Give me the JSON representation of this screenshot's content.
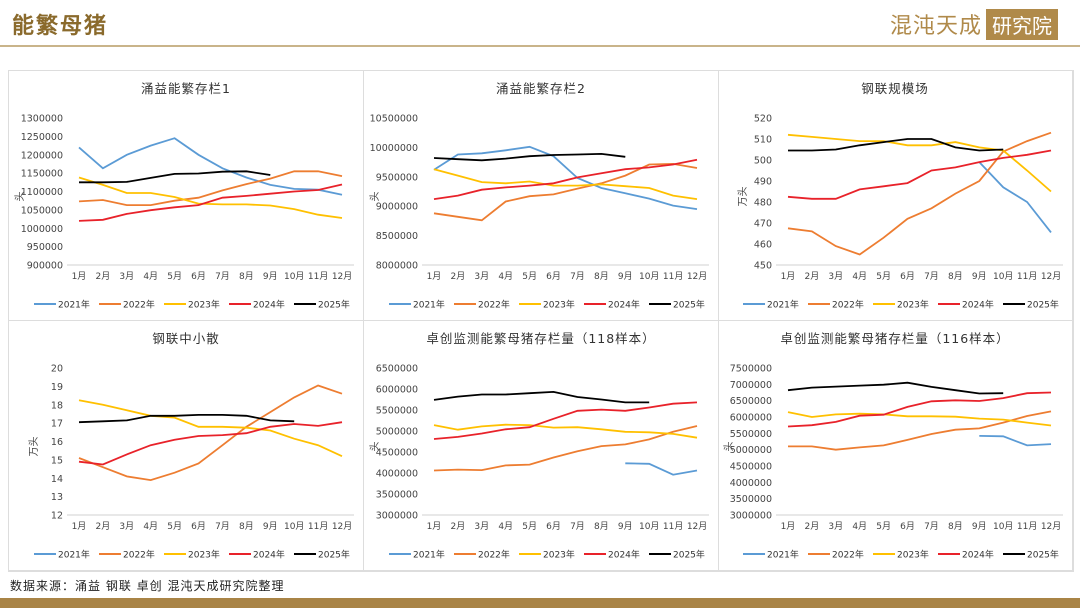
{
  "header": {
    "title": "能繁母猪",
    "logo_text": "混沌天成",
    "logo_badge": "研究院"
  },
  "footer": {
    "source": "数据来源：涌益 钢联 卓创 混沌天成研究院整理"
  },
  "colors": {
    "2021年": "#5b9bd5",
    "2022年": "#ed7d31",
    "2023年": "#ffc000",
    "2024年": "#e8222a",
    "2025年": "#000000"
  },
  "chart_data": [
    {
      "type": "line",
      "title": "涌益能繁存栏1",
      "ylabel": "头",
      "xlabel": "",
      "categories": [
        "1月",
        "2月",
        "3月",
        "4月",
        "5月",
        "6月",
        "7月",
        "8月",
        "9月",
        "10月",
        "11月",
        "12月"
      ],
      "ylim": [
        900000,
        1300000
      ],
      "ystep": 50000,
      "legend": "bottom",
      "series": [
        {
          "name": "2021年",
          "values": [
            1220000,
            1163000,
            1200000,
            1225000,
            1245000,
            1200000,
            1163000,
            1138000,
            1118000,
            1107000,
            1105000,
            1091000
          ]
        },
        {
          "name": "2022年",
          "values": [
            1073000,
            1077000,
            1063000,
            1063000,
            1075000,
            1083000,
            1103000,
            1120000,
            1135000,
            1155000,
            1155000,
            1142000
          ]
        },
        {
          "name": "2023年",
          "values": [
            1138000,
            1118000,
            1096000,
            1096000,
            1085000,
            1067000,
            1065000,
            1065000,
            1062000,
            1052000,
            1037000,
            1028000
          ]
        },
        {
          "name": "2024年",
          "values": [
            1020000,
            1023000,
            1039000,
            1049000,
            1057000,
            1063000,
            1083000,
            1088000,
            1094000,
            1100000,
            1104000,
            1119000
          ]
        },
        {
          "name": "2025年",
          "values": [
            1125000,
            1125000,
            1126000,
            1137000,
            1148000,
            1149000,
            1154000,
            1155000,
            1145000,
            null,
            null,
            null
          ]
        }
      ]
    },
    {
      "type": "line",
      "title": "涌益能繁存栏2",
      "ylabel": "头",
      "xlabel": "",
      "categories": [
        "1月",
        "2月",
        "3月",
        "4月",
        "5月",
        "6月",
        "7月",
        "8月",
        "9月",
        "10月",
        "11月",
        "12月"
      ],
      "ylim": [
        8000000,
        10500000
      ],
      "ystep": 500000,
      "legend": "bottom",
      "series": [
        {
          "name": "2021年",
          "values": [
            9620000,
            9880000,
            9900000,
            9950000,
            10010000,
            9850000,
            9480000,
            9310000,
            9220000,
            9130000,
            9010000,
            8950000
          ]
        },
        {
          "name": "2022年",
          "values": [
            8880000,
            8820000,
            8760000,
            9080000,
            9170000,
            9200000,
            9300000,
            9390000,
            9520000,
            9710000,
            9720000,
            9650000
          ]
        },
        {
          "name": "2023年",
          "values": [
            9630000,
            9520000,
            9410000,
            9390000,
            9420000,
            9350000,
            9350000,
            9370000,
            9340000,
            9310000,
            9180000,
            9120000
          ]
        },
        {
          "name": "2024年",
          "values": [
            9120000,
            9180000,
            9280000,
            9320000,
            9350000,
            9390000,
            9490000,
            9560000,
            9630000,
            9660000,
            9710000,
            9790000
          ]
        },
        {
          "name": "2025年",
          "values": [
            9820000,
            9800000,
            9780000,
            9810000,
            9850000,
            9870000,
            9880000,
            9890000,
            9840000,
            null,
            null,
            null
          ]
        }
      ]
    },
    {
      "type": "line",
      "title": "钢联规模场",
      "ylabel": "万头",
      "xlabel": "",
      "categories": [
        "1月",
        "2月",
        "3月",
        "4月",
        "5月",
        "6月",
        "7月",
        "8月",
        "9月",
        "10月",
        "11月",
        "12月"
      ],
      "ylim": [
        450,
        520
      ],
      "ystep": 10,
      "legend": "bottom",
      "series": [
        {
          "name": "2021年",
          "values": [
            null,
            null,
            null,
            null,
            null,
            null,
            null,
            null,
            499,
            487,
            480,
            465.5
          ]
        },
        {
          "name": "2022年",
          "values": [
            467.5,
            466,
            459,
            455,
            463,
            472,
            477,
            484,
            490,
            504,
            509,
            513
          ]
        },
        {
          "name": "2023年",
          "values": [
            512,
            511,
            510,
            509,
            509,
            507,
            507,
            508.5,
            506,
            504.5,
            495,
            485
          ]
        },
        {
          "name": "2024年",
          "values": [
            482.5,
            481.5,
            481.5,
            486,
            487.5,
            489,
            495,
            496.5,
            499,
            501,
            502.5,
            504.5
          ]
        },
        {
          "name": "2025年",
          "values": [
            504.5,
            504.5,
            505,
            507,
            508.5,
            510,
            510,
            506,
            504.5,
            505,
            null,
            null
          ]
        }
      ]
    },
    {
      "type": "line",
      "title": "钢联中小散",
      "ylabel": "万头",
      "xlabel": "",
      "categories": [
        "1月",
        "2月",
        "3月",
        "4月",
        "5月",
        "6月",
        "7月",
        "8月",
        "9月",
        "10月",
        "11月",
        "12月"
      ],
      "ylim": [
        12,
        20
      ],
      "ystep": 1,
      "legend": "bottom",
      "series": [
        {
          "name": "2021年",
          "values": [
            null,
            null,
            null,
            null,
            null,
            null,
            null,
            null,
            null,
            null,
            null,
            null
          ]
        },
        {
          "name": "2022年",
          "values": [
            15.1,
            14.6,
            14.1,
            13.9,
            14.3,
            14.8,
            15.8,
            16.8,
            17.6,
            18.4,
            19.05,
            18.6
          ]
        },
        {
          "name": "2023年",
          "values": [
            18.25,
            18.0,
            17.7,
            17.4,
            17.3,
            16.8,
            16.8,
            16.75,
            16.6,
            16.15,
            15.8,
            15.2
          ]
        },
        {
          "name": "2024年",
          "values": [
            14.9,
            14.75,
            15.3,
            15.8,
            16.1,
            16.3,
            16.35,
            16.45,
            16.8,
            16.95,
            16.85,
            17.05
          ]
        },
        {
          "name": "2025年",
          "values": [
            17.05,
            17.1,
            17.15,
            17.4,
            17.4,
            17.45,
            17.45,
            17.4,
            17.15,
            17.1,
            null,
            null
          ]
        }
      ]
    },
    {
      "type": "line",
      "title": "卓创监测能繁母猪存栏量（118样本）",
      "ylabel": "头",
      "xlabel": "",
      "categories": [
        "1月",
        "2月",
        "3月",
        "4月",
        "5月",
        "6月",
        "7月",
        "8月",
        "9月",
        "10月",
        "11月",
        "12月"
      ],
      "ylim": [
        3000000,
        6500000
      ],
      "ystep": 500000,
      "legend": "bottom",
      "series": [
        {
          "name": "2021年",
          "values": [
            null,
            null,
            null,
            null,
            null,
            null,
            null,
            null,
            4230000,
            4220000,
            3960000,
            4060000
          ]
        },
        {
          "name": "2022年",
          "values": [
            4060000,
            4080000,
            4070000,
            4180000,
            4200000,
            4370000,
            4520000,
            4640000,
            4680000,
            4800000,
            4980000,
            5120000
          ]
        },
        {
          "name": "2023年",
          "values": [
            5140000,
            5030000,
            5110000,
            5150000,
            5140000,
            5080000,
            5090000,
            5040000,
            4980000,
            4970000,
            4930000,
            4840000
          ]
        },
        {
          "name": "2024年",
          "values": [
            4810000,
            4860000,
            4940000,
            5040000,
            5090000,
            5290000,
            5480000,
            5510000,
            5480000,
            5560000,
            5650000,
            5680000
          ]
        },
        {
          "name": "2025年",
          "values": [
            5740000,
            5820000,
            5870000,
            5870000,
            5900000,
            5930000,
            5810000,
            5750000,
            5680000,
            5680000,
            null,
            null
          ]
        }
      ]
    },
    {
      "type": "line",
      "title": "卓创监测能繁母猪存栏量（116样本）",
      "ylabel": "头",
      "xlabel": "",
      "categories": [
        "1月",
        "2月",
        "3月",
        "4月",
        "5月",
        "6月",
        "7月",
        "8月",
        "9月",
        "10月",
        "11月",
        "12月"
      ],
      "ylim": [
        3000000,
        7500000
      ],
      "ystep": 500000,
      "legend": "bottom",
      "series": [
        {
          "name": "2021年",
          "values": [
            null,
            null,
            null,
            null,
            null,
            null,
            null,
            null,
            5420000,
            5410000,
            5130000,
            5170000
          ]
        },
        {
          "name": "2022年",
          "values": [
            5100000,
            5100000,
            5000000,
            5070000,
            5130000,
            5300000,
            5480000,
            5610000,
            5650000,
            5830000,
            6030000,
            6170000
          ]
        },
        {
          "name": "2023年",
          "values": [
            6150000,
            6000000,
            6080000,
            6100000,
            6080000,
            6020000,
            6020000,
            6010000,
            5950000,
            5920000,
            5830000,
            5740000
          ]
        },
        {
          "name": "2024年",
          "values": [
            5710000,
            5750000,
            5850000,
            6040000,
            6070000,
            6310000,
            6480000,
            6510000,
            6490000,
            6580000,
            6730000,
            6750000
          ]
        },
        {
          "name": "2025年",
          "values": [
            6820000,
            6900000,
            6930000,
            6960000,
            6990000,
            7050000,
            6920000,
            6820000,
            6720000,
            6730000,
            null,
            null
          ]
        }
      ]
    }
  ]
}
